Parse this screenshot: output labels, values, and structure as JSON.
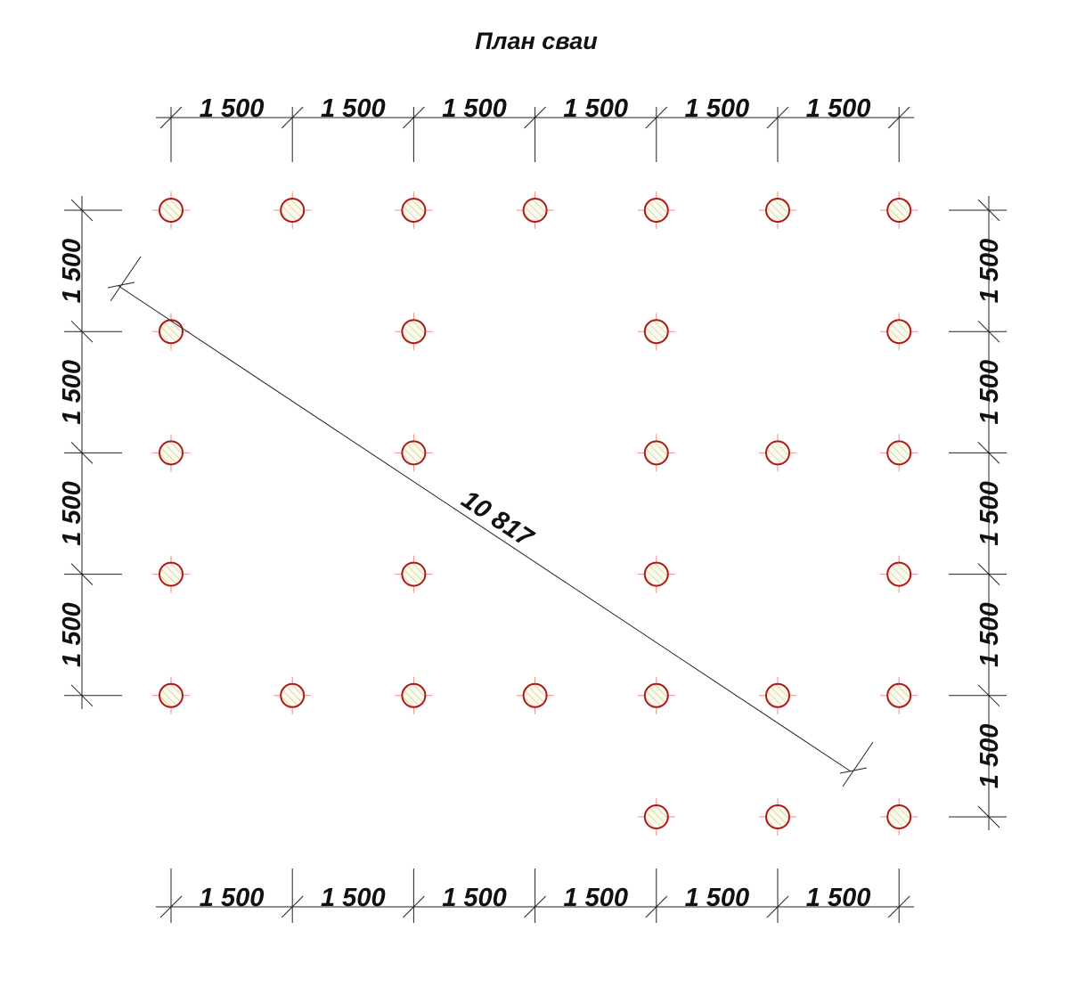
{
  "title": "План сваи",
  "colors": {
    "pile_outline": "#b01818",
    "pile_axis": "#f08a80",
    "pile_hatch": "#c9c46a",
    "lines": "#222222"
  },
  "grid": {
    "step_mm": 1500,
    "columns": 7,
    "rows": 6
  },
  "top_dimensions": [
    "1 500",
    "1 500",
    "1 500",
    "1 500",
    "1 500",
    "1 500"
  ],
  "bottom_dimensions": [
    "1 500",
    "1 500",
    "1 500",
    "1 500",
    "1 500",
    "1 500"
  ],
  "left_dimensions": [
    "1 500",
    "1 500",
    "1 500",
    "1 500"
  ],
  "right_dimensions": [
    "1 500",
    "1 500",
    "1 500",
    "1 500",
    "1 500"
  ],
  "diagonal_dimension": "10 817",
  "piles": [
    [
      0,
      0
    ],
    [
      1,
      0
    ],
    [
      2,
      0
    ],
    [
      3,
      0
    ],
    [
      4,
      0
    ],
    [
      5,
      0
    ],
    [
      6,
      0
    ],
    [
      0,
      1
    ],
    [
      2,
      1
    ],
    [
      4,
      1
    ],
    [
      6,
      1
    ],
    [
      0,
      2
    ],
    [
      2,
      2
    ],
    [
      4,
      2
    ],
    [
      5,
      2
    ],
    [
      6,
      2
    ],
    [
      0,
      3
    ],
    [
      2,
      3
    ],
    [
      4,
      3
    ],
    [
      6,
      3
    ],
    [
      0,
      4
    ],
    [
      1,
      4
    ],
    [
      2,
      4
    ],
    [
      3,
      4
    ],
    [
      4,
      4
    ],
    [
      5,
      4
    ],
    [
      6,
      4
    ],
    [
      4,
      5
    ],
    [
      5,
      5
    ],
    [
      6,
      5
    ]
  ]
}
